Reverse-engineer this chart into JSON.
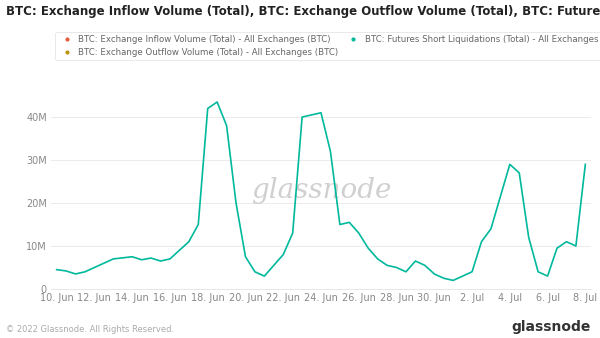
{
  "title": "BTC: Exchange Inflow Volume (Total), BTC: Exchange Outflow Volume (Total), BTC: Futures Short Liquidations (Total)",
  "legend_entries": [
    {
      "label": "BTC: Exchange Inflow Volume (Total) - All Exchanges (BTC)",
      "color": "#e05c3a"
    },
    {
      "label": "BTC: Exchange Outflow Volume (Total) - All Exchanges (BTC)",
      "color": "#b8960c"
    },
    {
      "label": "BTC: Futures Short Liquidations (Total) - All Exchanges [USD]",
      "color": "#00b89c"
    }
  ],
  "x_labels": [
    "10. Jun",
    "12. Jun",
    "14. Jun",
    "16. Jun",
    "18. Jun",
    "20. Jun",
    "22. Jun",
    "24. Jun",
    "26. Jun",
    "28. Jun",
    "30. Jun",
    "2. Jul",
    "4. Jul",
    "6. Jul",
    "8. Jul"
  ],
  "x_tick_pos": [
    0,
    2,
    4,
    6,
    8,
    10,
    12,
    14,
    16,
    18,
    20,
    22,
    24,
    26,
    28
  ],
  "green_line_x": [
    0,
    0.5,
    1,
    1.5,
    2,
    3,
    4,
    4.5,
    5,
    5.5,
    6,
    6.5,
    7,
    7.5,
    8,
    8.5,
    9,
    9.5,
    10,
    10.5,
    11,
    12,
    12.5,
    13,
    14,
    14.5,
    15,
    15.5,
    16,
    16.5,
    17,
    17.5,
    18,
    18.5,
    19,
    19.5,
    20,
    20.5,
    21,
    22,
    22.5,
    23,
    24,
    24.5,
    25,
    25.5,
    26,
    26.5,
    27,
    27.5,
    28
  ],
  "green_line_y": [
    4500000,
    4200000,
    3500000,
    4000000,
    5000000,
    7000000,
    7500000,
    6800000,
    7200000,
    6500000,
    7000000,
    9000000,
    11000000,
    15000000,
    42000000,
    43500000,
    38000000,
    20000000,
    7500000,
    4000000,
    3000000,
    8000000,
    13000000,
    40000000,
    41000000,
    32000000,
    15000000,
    15500000,
    13000000,
    9500000,
    7000000,
    5500000,
    5000000,
    4000000,
    6500000,
    5500000,
    3500000,
    2500000,
    2000000,
    4000000,
    11000000,
    14000000,
    29000000,
    27000000,
    12000000,
    4000000,
    3000000,
    9500000,
    11000000,
    10000000,
    29000000
  ],
  "ylim": [
    0,
    46000000
  ],
  "yticks": [
    0,
    10000000,
    20000000,
    30000000,
    40000000
  ],
  "ytick_labels": [
    "0",
    "10M",
    "20M",
    "30M",
    "40M"
  ],
  "watermark": "glassnode",
  "footer_text": "© 2022 Glassnode. All Rights Reserved.",
  "background_color": "#ffffff",
  "plot_bg_color": "#f8f9fb",
  "line_color": "#00b89c",
  "line_width": 1.2,
  "grid_color": "#e8e8e8",
  "title_fontsize": 8.5,
  "legend_fontsize": 6.2,
  "tick_fontsize": 7,
  "footer_fontsize": 6,
  "glassnode_fontsize": 10
}
